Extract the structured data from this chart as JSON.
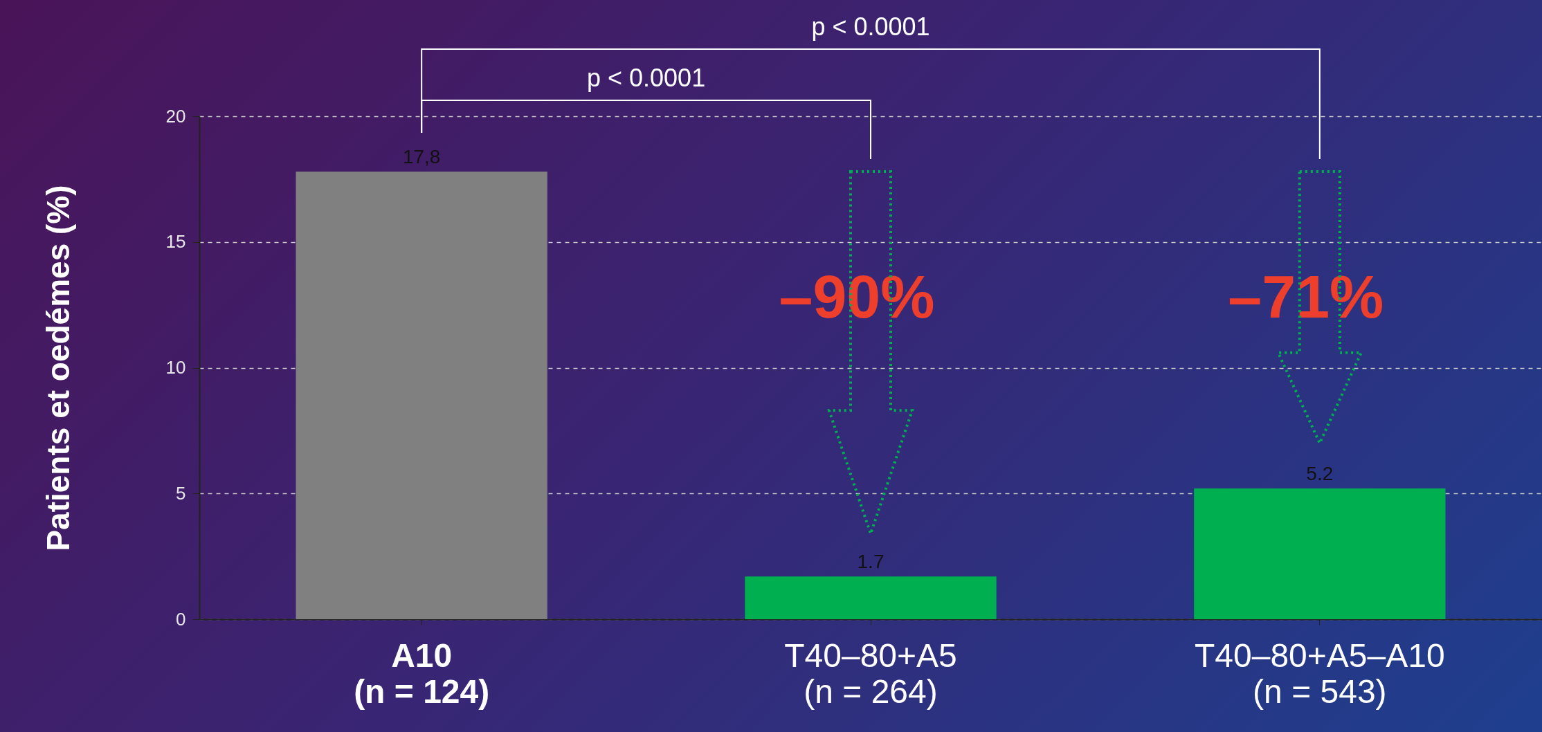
{
  "chart_data": {
    "type": "bar",
    "ylabel": "Patients et oedémes (%)",
    "categories": [
      "A10\n(n = 124)",
      "T40–80+A5\n(n = 264)",
      "T40–80+A5–A10\n(n = 543)"
    ],
    "values": [
      17.8,
      1.7,
      5.2
    ],
    "colors": [
      "#808080",
      "#00b050",
      "#00b050"
    ],
    "value_labels": [
      "17,8",
      "1.7",
      "5.2"
    ],
    "ylim": [
      0,
      20
    ],
    "yticks": [
      0,
      5,
      10,
      15,
      20
    ],
    "grid": "y",
    "annotations": [
      "p < 0.0001",
      "p < 0.0001",
      "–90%",
      "–71%"
    ]
  }
}
